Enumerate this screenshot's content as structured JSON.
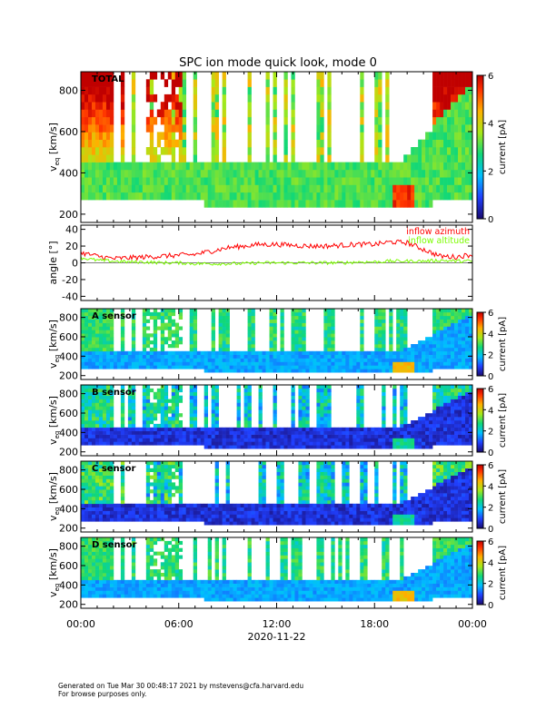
{
  "title": "SPC ion mode quick look, mode 0",
  "footer": {
    "line1": "Generated on Tue Mar 30 00:48:17 2021 by mstevens@cfa.harvard.edu",
    "line2": "For browse purposes only."
  },
  "colors": {
    "frame": "#000000",
    "azimuth": "#ff0000",
    "altitude": "#7cfc00"
  },
  "chart_data": [
    {
      "type": "heatmap",
      "name": "total",
      "panel_label": "TOTAL",
      "ylabel": "v",
      "ylabel_sub": "eq",
      "ylabel_unit": "[km/s]",
      "ylim": [
        160,
        890
      ],
      "yticks": [
        200,
        400,
        600,
        800
      ],
      "xticks": [
        "00:00",
        "06:00",
        "12:00",
        "18:00",
        "00:00"
      ],
      "xlabel": "2020-11-22",
      "colorbar": {
        "label": "current [pA]",
        "range": [
          0,
          6
        ],
        "ticks": [
          0,
          2,
          4,
          6
        ]
      },
      "colormap": "rainbow"
    },
    {
      "type": "line",
      "name": "angles",
      "ylabel": "angle [°]",
      "ylim": [
        -45,
        45
      ],
      "yticks": [
        -40,
        -20,
        0,
        20,
        40
      ],
      "series": [
        {
          "name": "inflow azimuth",
          "color": "#ff0000",
          "hours": [
            0,
            1,
            2,
            3,
            4,
            5,
            6,
            7,
            8,
            9,
            10,
            11,
            12,
            13,
            14,
            15,
            16,
            17,
            18,
            19,
            20,
            21,
            22,
            23,
            24
          ],
          "values": [
            12,
            8,
            5,
            6,
            7,
            8,
            9,
            10,
            14,
            18,
            20,
            22,
            22,
            21,
            20,
            20,
            21,
            22,
            22,
            25,
            24,
            16,
            8,
            7,
            10
          ]
        },
        {
          "name": "inflow altitude",
          "color": "#7cfc00",
          "hours": [
            0,
            1,
            2,
            3,
            4,
            5,
            6,
            7,
            8,
            9,
            10,
            11,
            12,
            13,
            14,
            15,
            16,
            17,
            18,
            19,
            20,
            21,
            22,
            23,
            24
          ],
          "values": [
            6,
            3,
            2,
            1,
            1,
            0,
            0,
            -1,
            -1,
            -1,
            -1,
            0,
            0,
            0,
            0,
            0,
            0,
            1,
            1,
            2,
            2,
            2,
            3,
            2,
            2
          ]
        }
      ]
    },
    {
      "type": "heatmap",
      "name": "a_sensor",
      "panel_label": "A sensor",
      "ylabel": "v",
      "ylabel_sub": "eq",
      "ylabel_unit": "[km/s]",
      "ylim": [
        160,
        890
      ],
      "yticks": [
        200,
        400,
        600,
        800
      ],
      "colorbar": {
        "label": "current [pA]",
        "range": [
          0,
          6
        ],
        "ticks": [
          0,
          2,
          4,
          6
        ]
      }
    },
    {
      "type": "heatmap",
      "name": "b_sensor",
      "panel_label": "B sensor",
      "ylabel": "v",
      "ylabel_sub": "eq",
      "ylabel_unit": "[km/s]",
      "ylim": [
        160,
        890
      ],
      "yticks": [
        200,
        400,
        600,
        800
      ],
      "colorbar": {
        "label": "current [pA]",
        "range": [
          0,
          6
        ],
        "ticks": [
          0,
          2,
          4,
          6
        ]
      }
    },
    {
      "type": "heatmap",
      "name": "c_sensor",
      "panel_label": "C sensor",
      "ylabel": "v",
      "ylabel_sub": "eq",
      "ylabel_unit": "[km/s]",
      "ylim": [
        160,
        890
      ],
      "yticks": [
        200,
        400,
        600,
        800
      ],
      "colorbar": {
        "label": "current [pA]",
        "range": [
          0,
          6
        ],
        "ticks": [
          0,
          2,
          4,
          6
        ]
      }
    },
    {
      "type": "heatmap",
      "name": "d_sensor",
      "panel_label": "D sensor",
      "ylabel": "v",
      "ylabel_sub": "eq",
      "ylabel_unit": "[km/s]",
      "ylim": [
        160,
        890
      ],
      "yticks": [
        200,
        400,
        600,
        800
      ],
      "colorbar": {
        "label": "current [pA]",
        "range": [
          0,
          6
        ],
        "ticks": [
          0,
          2,
          4,
          6
        ]
      }
    }
  ]
}
